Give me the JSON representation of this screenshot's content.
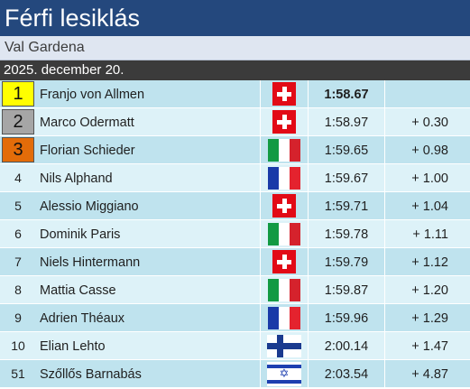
{
  "header": {
    "title": "Férfi lesiklás",
    "venue": "Val Gardena",
    "date": "2025. december 20."
  },
  "colors": {
    "title_bg": "#24487d",
    "gold": "#ffff00",
    "silver": "#a6a6a6",
    "bronze": "#e36c09",
    "row_odd": "#bfe3ee",
    "row_even": "#ddf2f8"
  },
  "results": [
    {
      "rank": "1",
      "name": "Franjo von Allmen",
      "flag": "switzerland-flag-icon",
      "time": "1:58.67",
      "gap": ""
    },
    {
      "rank": "2",
      "name": "Marco Odermatt",
      "flag": "switzerland-flag-icon",
      "time": "1:58.97",
      "gap": "+ 0.30"
    },
    {
      "rank": "3",
      "name": "Florian Schieder",
      "flag": "italy-flag-icon",
      "time": "1:59.65",
      "gap": "+ 0.98"
    },
    {
      "rank": "4",
      "name": "Nils Alphand",
      "flag": "france-flag-icon",
      "time": "1:59.67",
      "gap": "+ 1.00"
    },
    {
      "rank": "5",
      "name": "Alessio Miggiano",
      "flag": "switzerland-flag-icon",
      "time": "1:59.71",
      "gap": "+ 1.04"
    },
    {
      "rank": "6",
      "name": "Dominik Paris",
      "flag": "italy-flag-icon",
      "time": "1:59.78",
      "gap": "+ 1.11"
    },
    {
      "rank": "7",
      "name": "Niels Hintermann",
      "flag": "switzerland-flag-icon",
      "time": "1:59.79",
      "gap": "+ 1.12"
    },
    {
      "rank": "8",
      "name": "Mattia Casse",
      "flag": "italy-flag-icon",
      "time": "1:59.87",
      "gap": "+ 1.20"
    },
    {
      "rank": "9",
      "name": "Adrien Théaux",
      "flag": "france-flag-icon",
      "time": "1:59.96",
      "gap": "+ 1.29"
    },
    {
      "rank": "10",
      "name": "Elian Lehto",
      "flag": "finland-flag-icon",
      "time": "2:00.14",
      "gap": "+ 1.47"
    },
    {
      "rank": "51",
      "name": "Szőllős Barnabás",
      "flag": "israel-flag-icon",
      "time": "2:03.54",
      "gap": "+ 4.87"
    }
  ]
}
